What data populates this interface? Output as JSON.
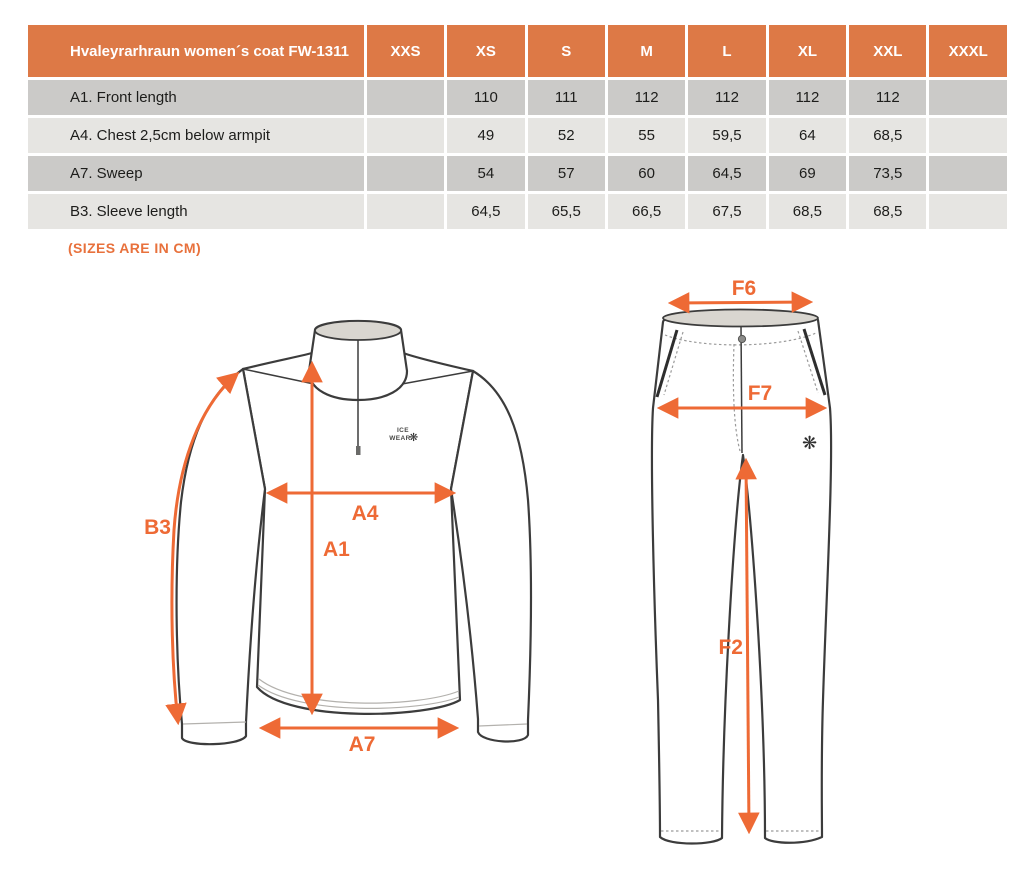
{
  "note": "(SIZES ARE IN CM)",
  "table": {
    "product_header": "Hvaleyrarhraun women´s coat FW-1311",
    "size_headers": [
      "XXS",
      "XS",
      "S",
      "M",
      "L",
      "XL",
      "XXL",
      "XXXL"
    ],
    "rows": [
      {
        "label": "A1. Front length",
        "values": [
          "",
          "110",
          "111",
          "112",
          "112",
          "112",
          "112",
          ""
        ]
      },
      {
        "label": "A4. Chest 2,5cm below armpit",
        "values": [
          "",
          "49",
          "52",
          "55",
          "59,5",
          "64",
          "68,5",
          ""
        ]
      },
      {
        "label": "A7. Sweep",
        "values": [
          "",
          "54",
          "57",
          "60",
          "64,5",
          "69",
          "73,5",
          ""
        ]
      },
      {
        "label": "B3. Sleeve length",
        "values": [
          "",
          "64,5",
          "65,5",
          "66,5",
          "67,5",
          "68,5",
          "68,5",
          ""
        ]
      }
    ]
  },
  "coat_diagram": {
    "labels": {
      "sleeve_length": "B3",
      "chest": "A4",
      "front_length": "A1",
      "sweep": "A7"
    },
    "logo": {
      "line1": "ICE",
      "line2": "WEAR",
      "snowflake": "❋"
    }
  },
  "pants_diagram": {
    "labels": {
      "waist": "F6",
      "hip": "F7",
      "inseam": "F2"
    },
    "snowflake": "❋"
  },
  "colors": {
    "header_orange": "#dd7946",
    "arrow_orange": "#ee6a35",
    "note_orange": "#e8713c",
    "row_dark": "#cbcac8",
    "row_light": "#e6e5e2"
  }
}
